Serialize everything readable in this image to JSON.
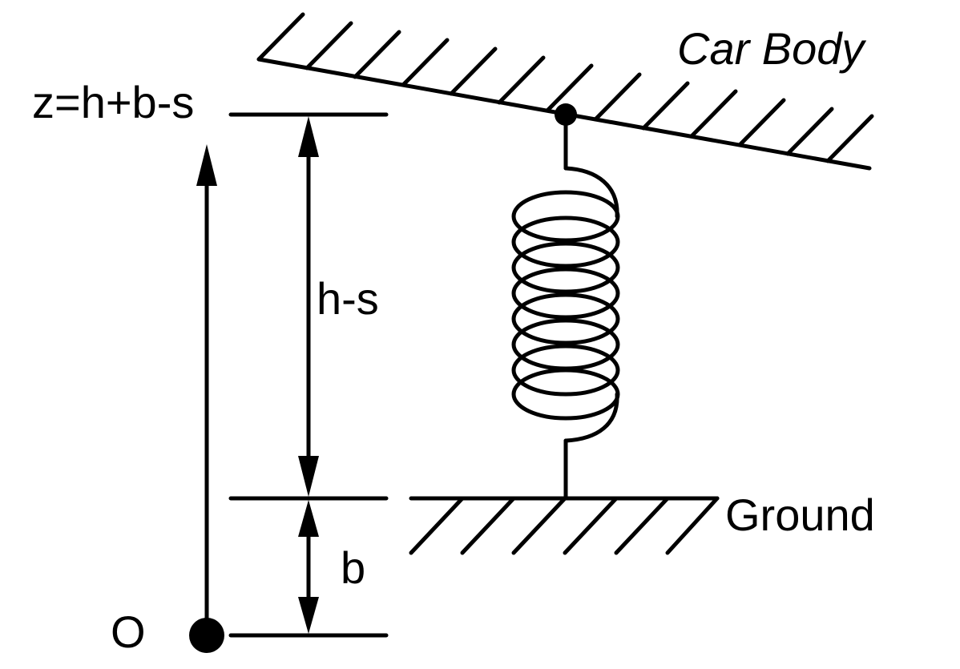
{
  "labels": {
    "car_body": "Car Body",
    "z_equation": "z=h+b-s",
    "h_minus_s": "h-s",
    "b": "b",
    "ground": "Ground",
    "origin": "O"
  },
  "colors": {
    "stroke": "#000000",
    "background": "#ffffff"
  }
}
